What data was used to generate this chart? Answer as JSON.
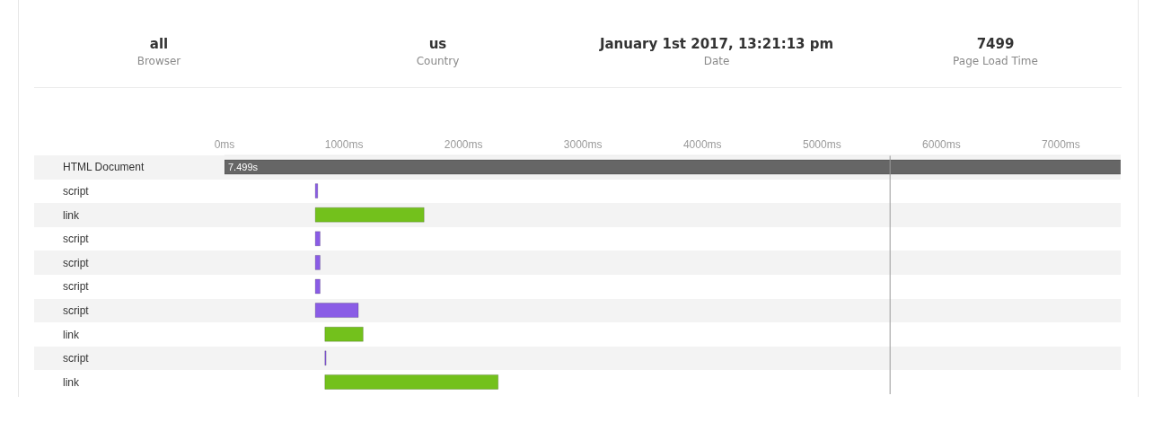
{
  "chart_data": {
    "type": "bar",
    "orientation": "horizontal",
    "categories": [
      "HTML Document",
      "script",
      "link",
      "script",
      "script",
      "script",
      "script",
      "link",
      "script",
      "link"
    ],
    "base": [
      0,
      760,
      760,
      760,
      760,
      760,
      760,
      840,
      840,
      840
    ],
    "values": [
      7499,
      20,
      910,
      40,
      40,
      40,
      360,
      320,
      10,
      1450
    ],
    "colors": [
      "#666666",
      "#8a5ce6",
      "#73c11c",
      "#8a5ce6",
      "#8a5ce6",
      "#8a5ce6",
      "#8a5ce6",
      "#73c11c",
      "#8a5ce6",
      "#73c11c"
    ],
    "value_labels": [
      "7.499s",
      null,
      null,
      null,
      null,
      null,
      null,
      null,
      null,
      null
    ],
    "xlim": [
      0,
      7500
    ],
    "xticks": [
      {
        "value": 0,
        "label": "0ms"
      },
      {
        "value": 1000,
        "label": "1000ms"
      },
      {
        "value": 2000,
        "label": "2000ms"
      },
      {
        "value": 3000,
        "label": "3000ms"
      },
      {
        "value": 4000,
        "label": "4000ms"
      },
      {
        "value": 5000,
        "label": "5000ms"
      },
      {
        "value": 6000,
        "label": "6000ms"
      },
      {
        "value": 7000,
        "label": "7000ms"
      }
    ],
    "ref_lines": [
      {
        "axis": "x",
        "value": 5570,
        "color": "#999999"
      }
    ],
    "annotations": [
      "all",
      "Browser",
      "us",
      "Country",
      "January 1st 2017, 13:21:13 pm",
      "Date",
      "7499",
      "Page Load Time"
    ]
  }
}
